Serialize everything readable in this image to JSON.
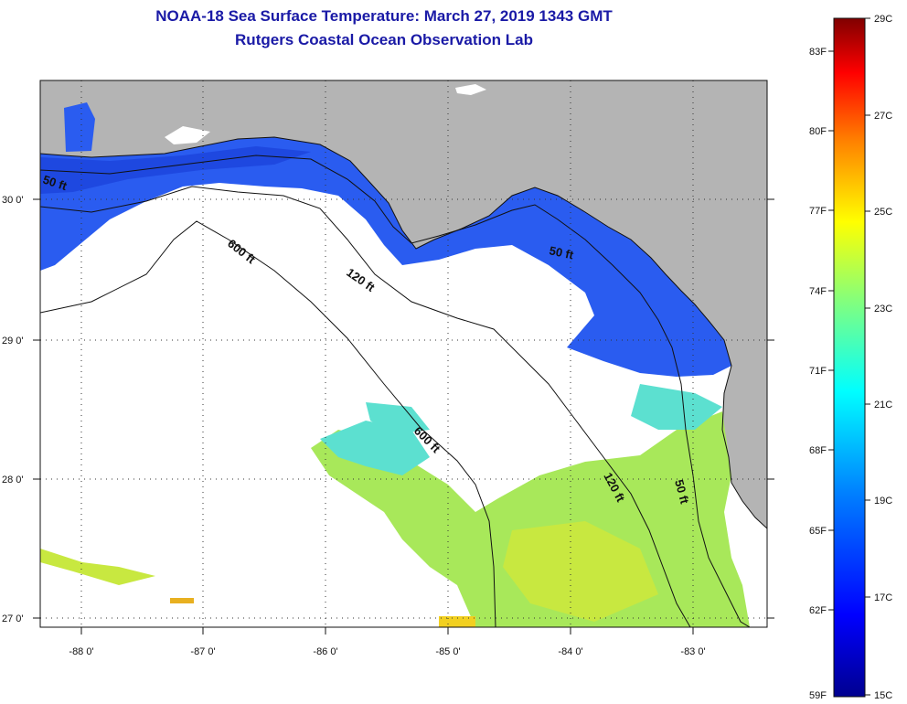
{
  "title": {
    "line1": "NOAA-18 Sea Surface Temperature:  March 27, 2019 1343 GMT",
    "line2": "Rutgers Coastal Ocean Observation Lab"
  },
  "map": {
    "lat_labels": [
      "30 0'",
      "29 0'",
      "28 0'",
      "27 0'"
    ],
    "lon_labels": [
      "-88 0'",
      "-87 0'",
      "-86 0'",
      "-85 0'",
      "-84 0'",
      "-83 0'"
    ],
    "contour_labels": [
      "50 ft",
      "600 ft",
      "120 ft",
      "50 ft",
      "600 ft",
      "120 ft",
      "50 ft"
    ],
    "colors": {
      "land": "#b4b4b4",
      "no_data": "#ffffff",
      "cold_water": "#2a5cf0",
      "warm_water": "#a8e85a"
    }
  },
  "colorbar": {
    "f_labels": [
      "83F",
      "80F",
      "77F",
      "74F",
      "71F",
      "68F",
      "65F",
      "62F",
      "59F"
    ],
    "c_labels": [
      "29C",
      "27C",
      "25C",
      "23C",
      "21C",
      "19C",
      "17C",
      "15C"
    ],
    "stops": [
      "#00008f",
      "#0000ff",
      "#0080ff",
      "#00ffff",
      "#80ff80",
      "#ffff00",
      "#ff8000",
      "#ff0000",
      "#800000"
    ]
  }
}
